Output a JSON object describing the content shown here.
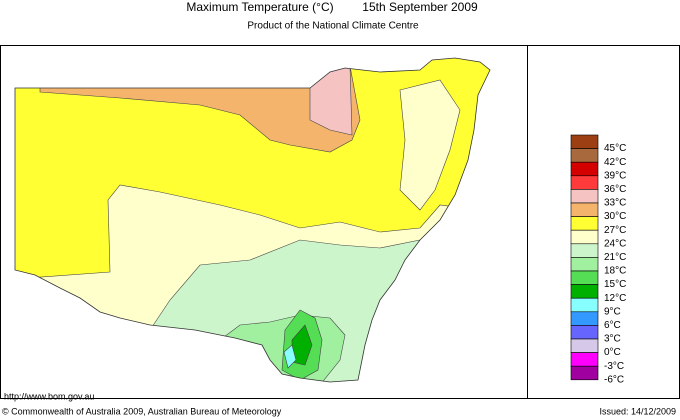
{
  "header": {
    "title": "Maximum Temperature (°C)",
    "date": "15th September 2009",
    "subtitle": "Product of the National Climate Centre"
  },
  "legend": [
    {
      "label": "45°C",
      "color": "#9c3f12"
    },
    {
      "label": "42°C",
      "color": "#a86a3c"
    },
    {
      "label": "39°C",
      "color": "#d40000"
    },
    {
      "label": "36°C",
      "color": "#ff3a3a"
    },
    {
      "label": "33°C",
      "color": "#f6c3c3"
    },
    {
      "label": "30°C",
      "color": "#f5b46c"
    },
    {
      "label": "27°C",
      "color": "#ffff33"
    },
    {
      "label": "24°C",
      "color": "#ffffcc"
    },
    {
      "label": "21°C",
      "color": "#ccf5cc"
    },
    {
      "label": "18°C",
      "color": "#a0f0a0"
    },
    {
      "label": "15°C",
      "color": "#55dd55"
    },
    {
      "label": "12°C",
      "color": "#00b000"
    },
    {
      "label": "9°C",
      "color": "#88ffff"
    },
    {
      "label": "6°C",
      "color": "#3399ff"
    },
    {
      "label": "3°C",
      "color": "#6666ff"
    },
    {
      "label": "0°C",
      "color": "#d6c8e8"
    },
    {
      "label": "-3°C",
      "color": "#ff00ff"
    },
    {
      "label": "-6°C",
      "color": "#a000a0"
    }
  ],
  "footer": {
    "url": "http://www.bom.gov.au",
    "copyright": "© Commonwealth of Australia 2009, Australian Bureau of Meteorology",
    "issued": "Issued: 14/12/2009"
  }
}
